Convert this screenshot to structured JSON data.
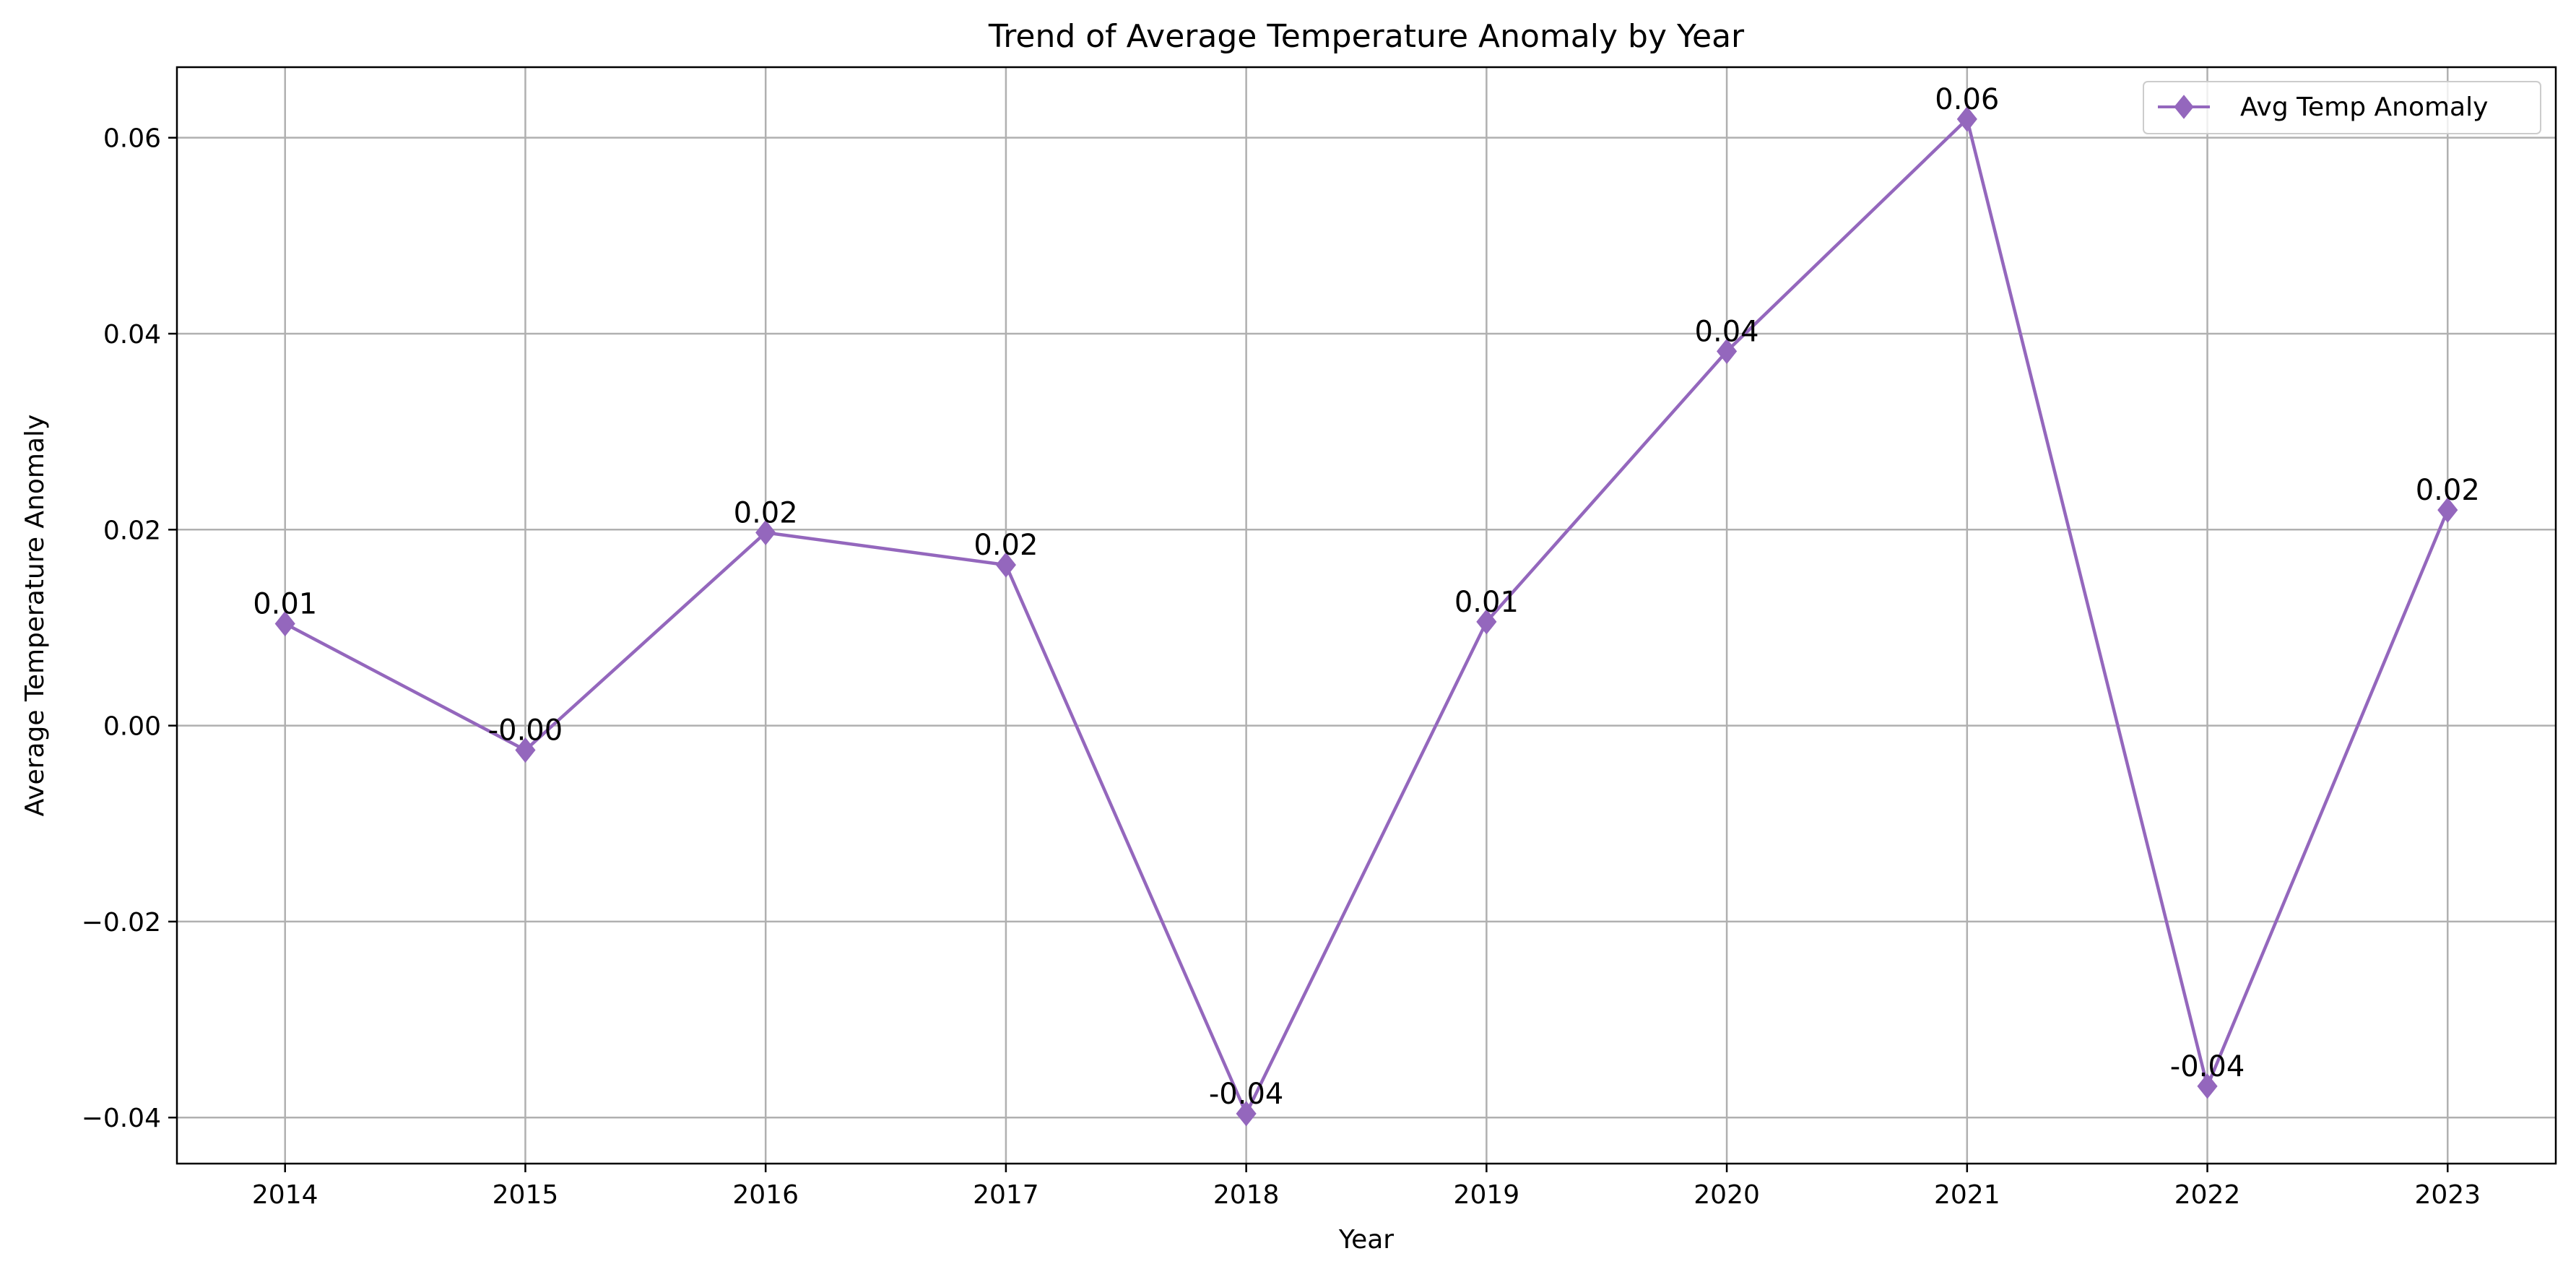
{
  "chart_data": {
    "type": "line",
    "title": "Trend of Average Temperature Anomaly by Year",
    "xlabel": "Year",
    "ylabel": "Average Temperature Anomaly",
    "x": [
      2014,
      2015,
      2016,
      2017,
      2018,
      2019,
      2020,
      2021,
      2022,
      2023
    ],
    "x_tick_labels": [
      "2014",
      "2015",
      "2016",
      "2017",
      "2018",
      "2019",
      "2020",
      "2021",
      "2022",
      "2023"
    ],
    "y_ticks": [
      -0.04,
      -0.02,
      0.0,
      0.02,
      0.04,
      0.06
    ],
    "y_tick_labels": [
      "−0.04",
      "−0.02",
      "0.00",
      "0.02",
      "0.04",
      "0.06"
    ],
    "xlim": [
      2013.55,
      2023.45
    ],
    "ylim": [
      -0.0447,
      0.0672
    ],
    "grid": true,
    "legend_position": "top-right",
    "series": [
      {
        "name": "Avg Temp Anomaly",
        "color": "#9467bd",
        "marker": "diamond",
        "values": [
          0.0104,
          -0.0025,
          0.0197,
          0.0164,
          -0.0396,
          0.0106,
          0.0382,
          0.0619,
          -0.0368,
          0.022
        ],
        "data_labels": [
          "0.01",
          "-0.00",
          "0.02",
          "0.02",
          "-0.04",
          "0.01",
          "0.04",
          "0.06",
          "-0.04",
          "0.02"
        ]
      }
    ]
  }
}
